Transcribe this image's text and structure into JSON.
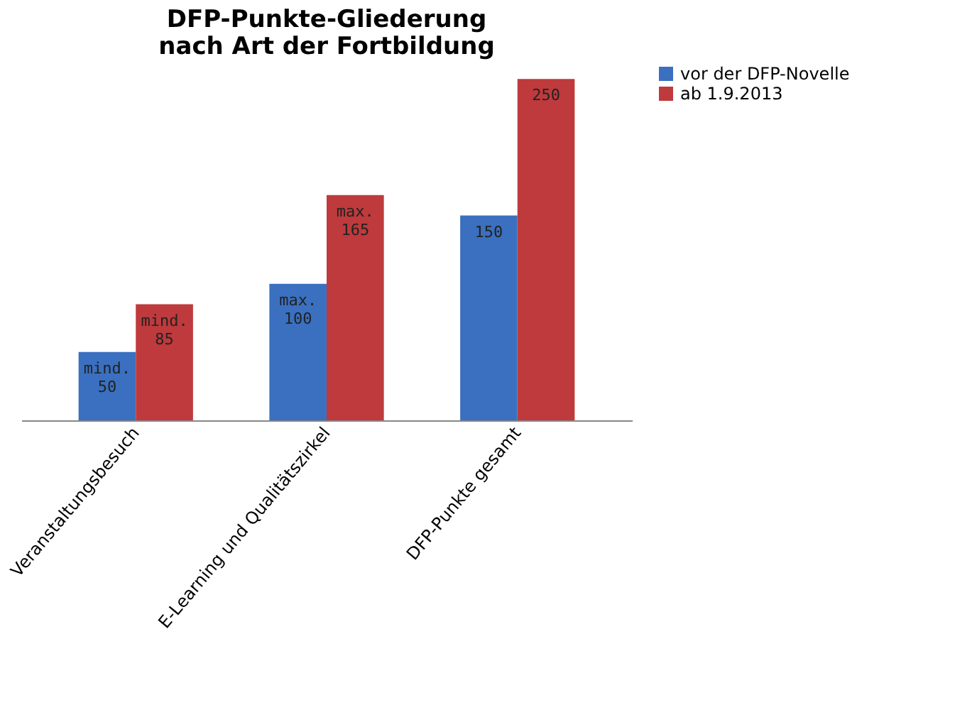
{
  "chart_data": {
    "type": "bar",
    "title": "DFP-Punkte-Gliederung\nnach Art der Fortbildung",
    "categories": [
      "Veranstaltungsbesuch",
      "E-Learning und Qualitätszirkel",
      "DFP-Punkte gesamt"
    ],
    "series": [
      {
        "name": "vor der DFP-Novelle",
        "color": "#3a70bf",
        "values": [
          50,
          100,
          150
        ],
        "value_labels": [
          "mind. 50",
          "max. 100",
          "150"
        ]
      },
      {
        "name": "ab 1.9.2013",
        "color": "#be3a3c",
        "values": [
          85,
          165,
          250
        ],
        "value_labels": [
          "mind. 85",
          "max. 165",
          "250"
        ]
      }
    ],
    "legend": "right",
    "grid": false
  }
}
